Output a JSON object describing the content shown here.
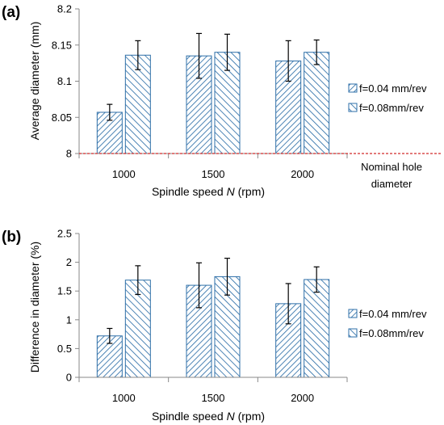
{
  "chart_data": [
    {
      "panel_label": "(a)",
      "type": "bar",
      "categories": [
        "1000",
        "1500",
        "2000"
      ],
      "series": [
        {
          "name": "f=0.04 mm/rev",
          "values": [
            8.057,
            8.135,
            8.128
          ],
          "errors": [
            0.011,
            0.031,
            0.028
          ],
          "hatch": "back"
        },
        {
          "name": "f=0.08mm/rev",
          "values": [
            8.136,
            8.14,
            8.14
          ],
          "errors": [
            0.02,
            0.025,
            0.017
          ],
          "hatch": "forward"
        }
      ],
      "xlabel_prefix": "Spindle speed ",
      "xlabel_var": "N",
      "xlabel_suffix": " (rpm)",
      "ylabel": "Average diameter (mm)",
      "ylim": [
        8,
        8.2
      ],
      "yticks": [
        "8",
        "8.05",
        "8.1",
        "8.15",
        "8.2"
      ],
      "reference_line": {
        "value": 8,
        "label_line1": "Nominal hole",
        "label_line2": "diameter",
        "color": "#d22b2b"
      },
      "legend_position": "right",
      "grid": false
    },
    {
      "panel_label": "(b)",
      "type": "bar",
      "categories": [
        "1000",
        "1500",
        "2000"
      ],
      "series": [
        {
          "name": "f=0.04 mm/rev",
          "values": [
            0.72,
            1.6,
            1.28
          ],
          "errors": [
            0.13,
            0.39,
            0.35
          ],
          "hatch": "back"
        },
        {
          "name": "f=0.08mm/rev",
          "values": [
            1.69,
            1.75,
            1.7
          ],
          "errors": [
            0.25,
            0.32,
            0.22
          ],
          "hatch": "forward"
        }
      ],
      "xlabel_prefix": "Spindle speed ",
      "xlabel_var": "N",
      "xlabel_suffix": " (rpm)",
      "ylabel": "Difference in diameter (%)",
      "ylim": [
        0,
        2.5
      ],
      "yticks": [
        "0",
        "0.5",
        "1",
        "1.5",
        "2",
        "2.5"
      ],
      "legend_position": "right",
      "grid": false
    }
  ],
  "colors": {
    "hatch_stroke": "#2e6fa8",
    "bar_fill": "#ffffff",
    "axis": "#888888",
    "error_bar": "#000000"
  }
}
